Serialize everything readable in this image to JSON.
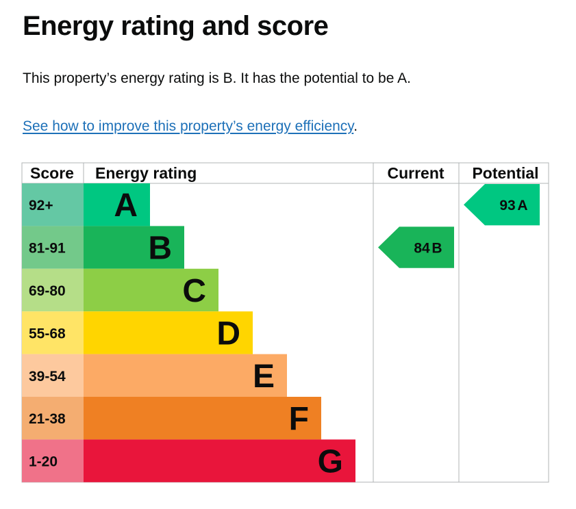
{
  "page": {
    "title": "Energy rating and score",
    "summary": "This property’s energy rating is B. It has the potential to be A.",
    "link_text": "See how to improve this property’s energy efficiency",
    "link_suffix": "."
  },
  "chart_data": {
    "type": "bar",
    "columns": [
      "Score",
      "Energy rating",
      "Current",
      "Potential"
    ],
    "bands": [
      {
        "score": "92+",
        "letter": "A",
        "color": "#00c781",
        "score_bg": "#64c8a4"
      },
      {
        "score": "81-91",
        "letter": "B",
        "color": "#19b459",
        "score_bg": "#73c98a"
      },
      {
        "score": "69-80",
        "letter": "C",
        "color": "#8dce46",
        "score_bg": "#b5de88"
      },
      {
        "score": "55-68",
        "letter": "D",
        "color": "#ffd500",
        "score_bg": "#ffe466"
      },
      {
        "score": "39-54",
        "letter": "E",
        "color": "#fcaa65",
        "score_bg": "#fdc99e"
      },
      {
        "score": "21-38",
        "letter": "F",
        "color": "#ef8023",
        "score_bg": "#f4ad71"
      },
      {
        "score": "1-20",
        "letter": "G",
        "color": "#e9153b",
        "score_bg": "#f07289"
      }
    ],
    "current": {
      "value": 84,
      "letter": "B"
    },
    "potential": {
      "value": 93,
      "letter": "A"
    },
    "colors": {
      "border": "#b1b4b6",
      "text": "#0b0c0c",
      "link": "#1d70b8"
    }
  }
}
